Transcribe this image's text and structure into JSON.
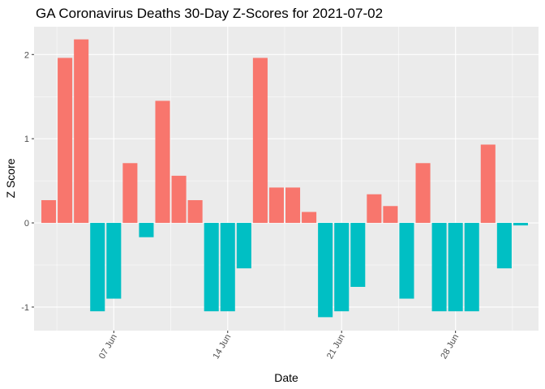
{
  "chart_data": {
    "type": "bar",
    "title": "GA Coronavirus Deaths 30-Day Z-Scores for 2021-07-02",
    "xlabel": "Date",
    "ylabel": "Z Score",
    "x": [
      "2021-06-03",
      "2021-06-04",
      "2021-06-05",
      "2021-06-06",
      "2021-06-07",
      "2021-06-08",
      "2021-06-09",
      "2021-06-10",
      "2021-06-11",
      "2021-06-12",
      "2021-06-13",
      "2021-06-14",
      "2021-06-15",
      "2021-06-16",
      "2021-06-17",
      "2021-06-18",
      "2021-06-19",
      "2021-06-20",
      "2021-06-21",
      "2021-06-22",
      "2021-06-23",
      "2021-06-24",
      "2021-06-25",
      "2021-06-26",
      "2021-06-27",
      "2021-06-28",
      "2021-06-29",
      "2021-06-30",
      "2021-07-01",
      "2021-07-02"
    ],
    "values": [
      0.27,
      1.96,
      2.18,
      -1.05,
      -0.9,
      0.71,
      -0.17,
      1.45,
      0.56,
      0.27,
      -1.05,
      -1.05,
      -0.54,
      1.96,
      0.42,
      0.42,
      0.13,
      -1.12,
      -1.05,
      -0.76,
      0.34,
      0.2,
      -0.9,
      0.71,
      -1.05,
      -1.05,
      -1.05,
      0.93,
      -0.54,
      -0.03
    ],
    "xlim": [
      "2021-06-02.1",
      "2021-07-03.1"
    ],
    "ylim": [
      -1.28,
      2.33
    ],
    "x_ticks": [
      {
        "date": "2021-06-07",
        "label": "07 Jun"
      },
      {
        "date": "2021-06-14",
        "label": "14 Jun"
      },
      {
        "date": "2021-06-21",
        "label": "21 Jun"
      },
      {
        "date": "2021-06-28",
        "label": "28 Jun"
      }
    ],
    "y_ticks": [
      {
        "value": -1,
        "label": "-1"
      },
      {
        "value": 0,
        "label": "0"
      },
      {
        "value": 1,
        "label": "1"
      },
      {
        "value": 2,
        "label": "2"
      }
    ],
    "colors": {
      "positive": "#F8766D",
      "negative": "#00BFC4",
      "panel": "#EBEBEB",
      "grid": "#FFFFFF"
    },
    "grid": true,
    "legend": "none"
  }
}
